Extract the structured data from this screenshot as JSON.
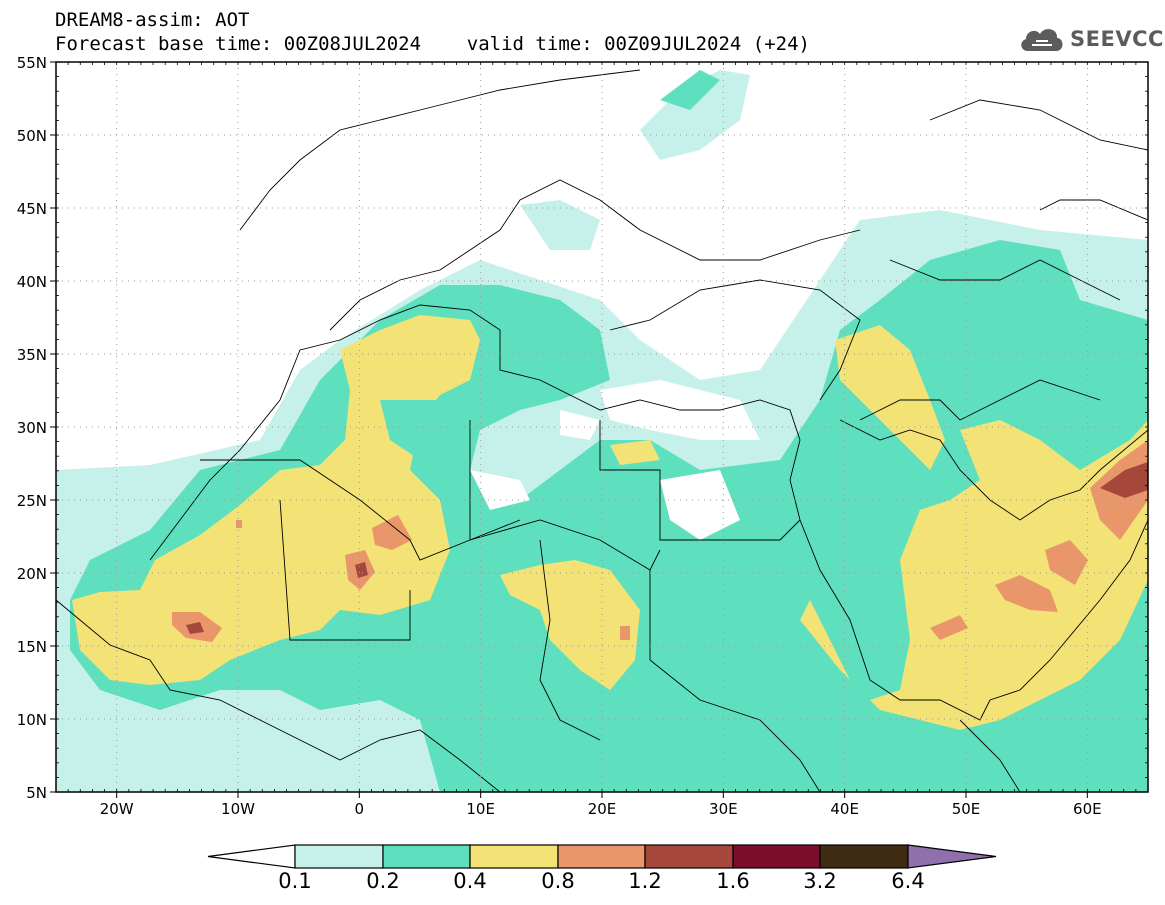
{
  "header": {
    "line1": "DREAM8-assim: AOT",
    "line2": "Forecast base time: 00Z08JUL2024    valid time: 00Z09JUL2024 (+24)"
  },
  "logo": {
    "text": "SEEVCCC",
    "icon": "cloud-logo-icon"
  },
  "map": {
    "lat_labels": [
      "55N",
      "50N",
      "45N",
      "40N",
      "35N",
      "30N",
      "25N",
      "20N",
      "15N",
      "10N",
      "5N"
    ],
    "lon_labels": [
      "20W",
      "10W",
      "0",
      "10E",
      "20E",
      "30E",
      "40E",
      "50E",
      "60E"
    ],
    "extent": {
      "lon": [
        -25,
        65
      ],
      "lat": [
        5,
        55
      ]
    },
    "grid": "dotted",
    "colors": {
      "c01": "#c6f0ea",
      "c02": "#5ee0be",
      "c04": "#f3e376",
      "c08": "#e8966a",
      "c12": "#a6473c",
      "c16": "#7a0e2c",
      "c32": "#3f2a14",
      "c64": "#8f70ac"
    }
  },
  "colorbar": {
    "labels": [
      "0.1",
      "0.2",
      "0.4",
      "0.8",
      "1.2",
      "1.6",
      "3.2",
      "6.4"
    ],
    "colors": [
      "#ffffff",
      "#c6f0ea",
      "#5ee0be",
      "#f3e376",
      "#e8966a",
      "#a6473c",
      "#7a0e2c",
      "#3f2a14",
      "#8f70ac"
    ]
  }
}
